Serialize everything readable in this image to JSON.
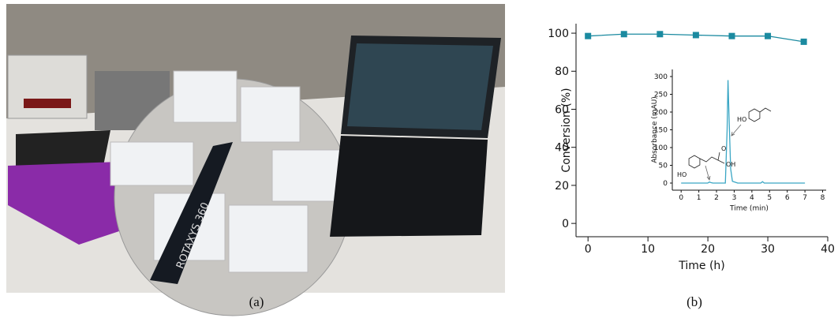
{
  "panels": [
    "(a)",
    "(b)"
  ],
  "photo": {
    "text": "ROTAXYS 360"
  },
  "chart_data": [
    {
      "type": "line",
      "x_label": "Time (h)",
      "y_label": "Conversion (%)",
      "x": [
        0,
        6,
        12,
        18,
        24,
        30,
        36
      ],
      "series": [
        {
          "color": "#1b8aa0",
          "values": [
            98.5,
            99.5,
            99.5,
            99,
            98.5,
            98.5,
            95.5
          ]
        }
      ],
      "marker": "square",
      "xlim": [
        -2,
        40
      ],
      "ylim": [
        -7,
        105
      ],
      "xticks": [
        0,
        10,
        20,
        30,
        40
      ],
      "yticks": [
        0,
        20,
        40,
        60,
        80,
        100
      ]
    },
    {
      "type": "line",
      "x_label": "Time (min)",
      "y_label": "Absorbance (mAU)",
      "x": [
        0,
        1.5,
        1.6,
        1.7,
        1.8,
        2.5,
        2.6,
        2.65,
        2.7,
        2.8,
        2.9,
        3.2,
        4.5,
        4.6,
        4.7,
        7
      ],
      "series": [
        {
          "color": "#3aa6c4",
          "values": [
            0,
            0,
            3,
            1,
            0,
            0,
            150,
            290,
            200,
            40,
            5,
            0,
            0,
            4,
            0,
            0
          ]
        }
      ],
      "xlim": [
        -0.5,
        8.2
      ],
      "ylim": [
        -20,
        320
      ],
      "xticks": [
        0,
        1,
        2,
        3,
        4,
        5,
        6,
        7,
        8
      ],
      "yticks": [
        0,
        50,
        100,
        150,
        200,
        250,
        300
      ],
      "structure_labels": [
        "HO",
        "O",
        "OH",
        "HO"
      ]
    }
  ]
}
